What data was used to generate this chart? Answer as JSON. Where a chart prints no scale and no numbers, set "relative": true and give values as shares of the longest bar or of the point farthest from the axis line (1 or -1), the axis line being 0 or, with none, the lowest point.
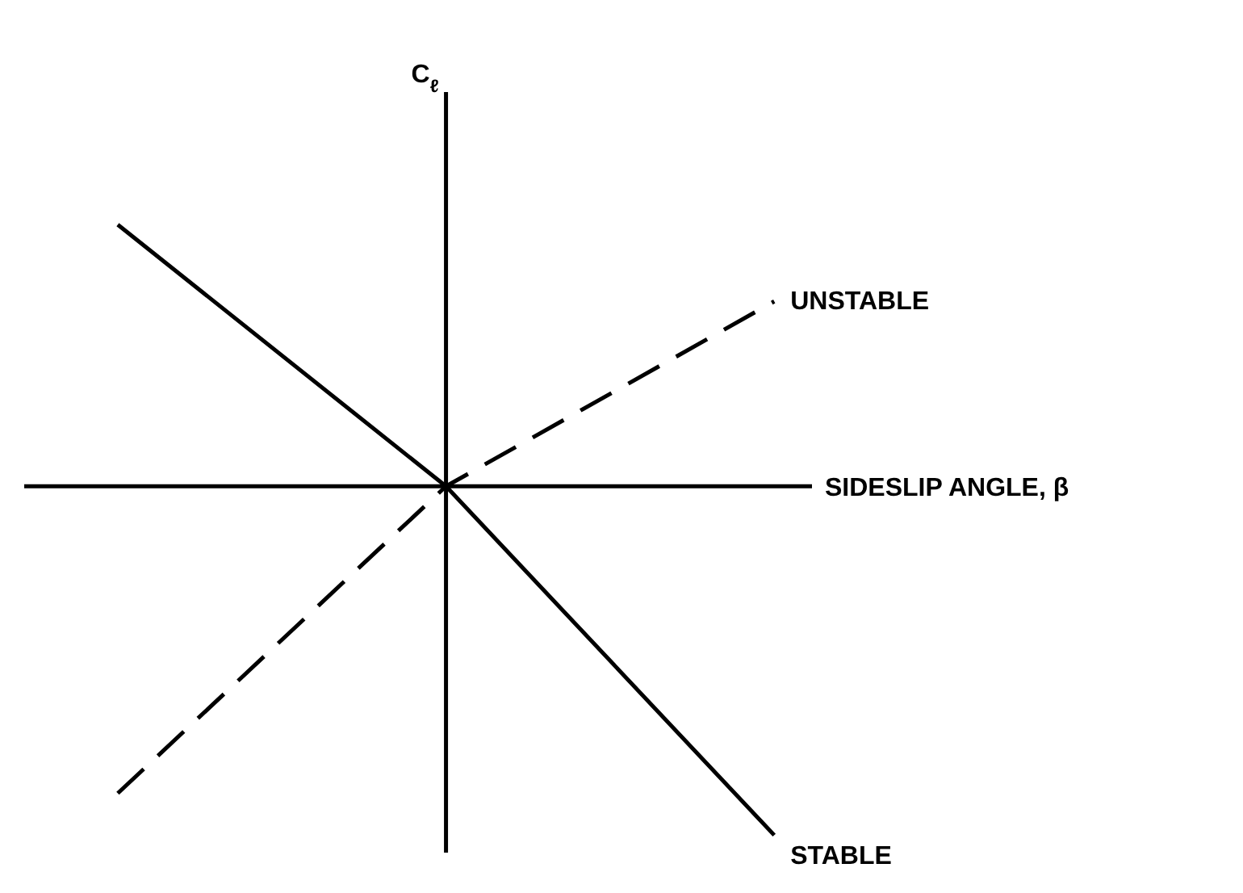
{
  "chart_data": {
    "type": "line",
    "relative": true,
    "xlabel": "SIDESLIP ANGLE, β",
    "ylabel": "C$_{ℓ}$",
    "categories": [
      null,
      null,
      null
    ],
    "series": [
      {
        "name": "UNSTABLE",
        "color": "#000000",
        "line_style": "dashed",
        "values": [
          -0.88,
          0,
          0.53
        ]
      },
      {
        "name": "STABLE",
        "color": "#000000",
        "line_style": "solid",
        "values": [
          0.75,
          0,
          -1
        ]
      }
    ],
    "marker": "none",
    "grid": false,
    "legend": false
  }
}
